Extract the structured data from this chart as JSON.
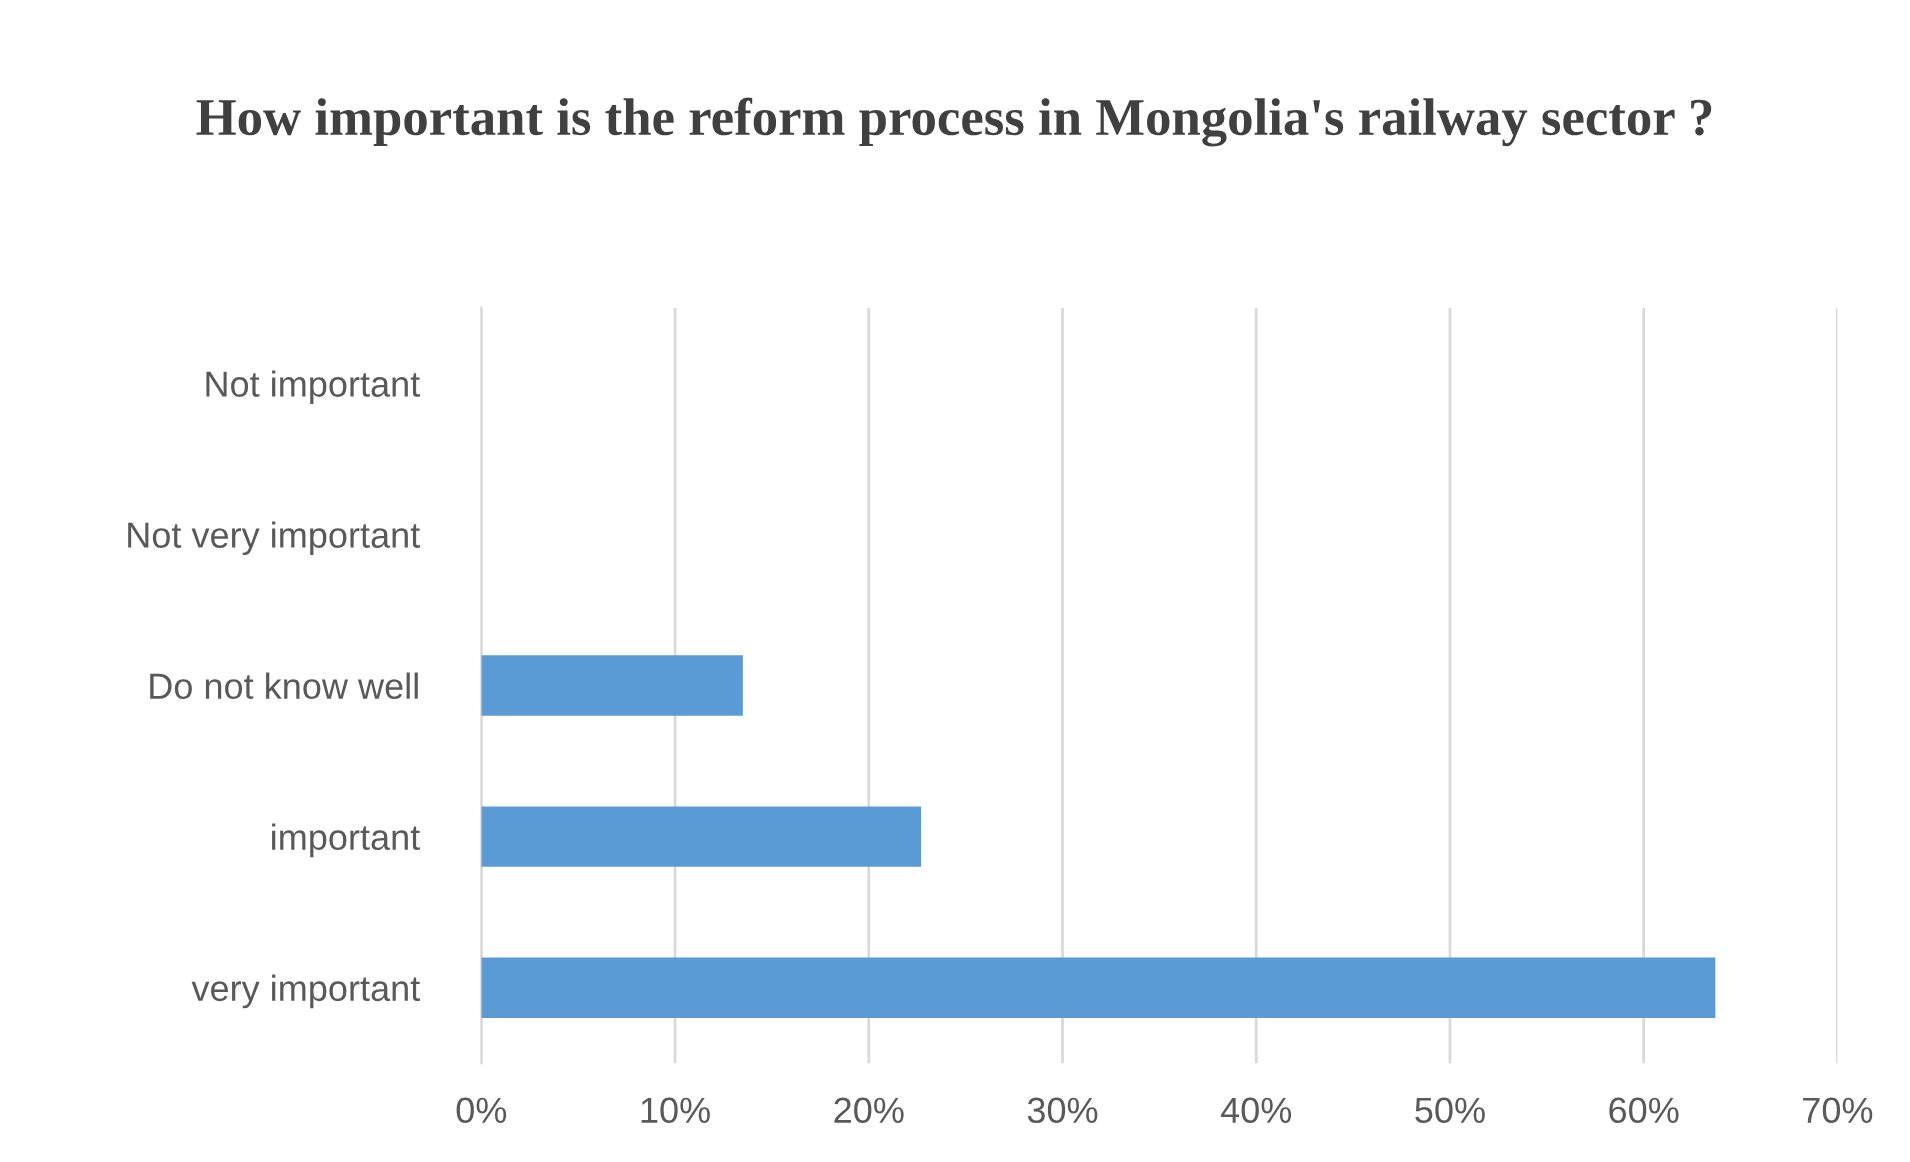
{
  "chart_data": {
    "type": "bar",
    "orientation": "horizontal",
    "title": "How important is the reform process in Mongolia's railway sector ?",
    "categories": [
      "Not important",
      "Not very important",
      "Do not know well",
      "important",
      "very important"
    ],
    "values": [
      0,
      0,
      13.5,
      22.7,
      63.7
    ],
    "color": "#5b9bd5",
    "xlim": [
      0,
      70
    ],
    "xticks": [
      {
        "value": 0,
        "label": "0%"
      },
      {
        "value": 10,
        "label": "10%"
      },
      {
        "value": 20,
        "label": "20%"
      },
      {
        "value": 30,
        "label": "30%"
      },
      {
        "value": 40,
        "label": "40%"
      },
      {
        "value": 50,
        "label": "50%"
      },
      {
        "value": 60,
        "label": "60%"
      },
      {
        "value": 70,
        "label": "70%"
      }
    ],
    "grid": "x"
  }
}
